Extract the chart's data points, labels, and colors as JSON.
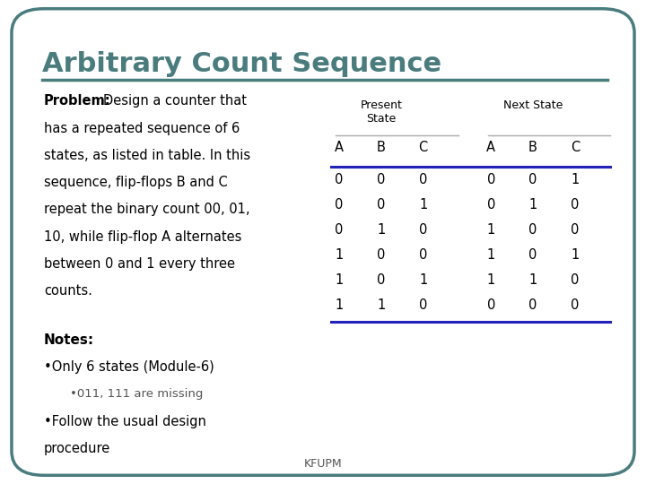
{
  "title": "Arbitrary Count Sequence",
  "title_color": "#4a7c7e",
  "background_color": "#ffffff",
  "border_color": "#4a7c7e",
  "present_state_label": "Present\nState",
  "next_state_label": "Next State",
  "col_headers": [
    "A",
    "B",
    "C",
    "A",
    "B",
    "C"
  ],
  "table_data": [
    [
      0,
      0,
      0,
      0,
      0,
      1
    ],
    [
      0,
      0,
      1,
      0,
      1,
      0
    ],
    [
      0,
      1,
      0,
      1,
      0,
      0
    ],
    [
      1,
      0,
      0,
      1,
      0,
      1
    ],
    [
      1,
      0,
      1,
      1,
      1,
      0
    ],
    [
      1,
      1,
      0,
      0,
      0,
      0
    ]
  ],
  "footer": "KFUPM",
  "title_line_color": "#4a7c7e",
  "table_line_color": "#2222bb",
  "separator_line_color": "#aaaaaa",
  "problem_lines": [
    "Design a counter that",
    "has a repeated sequence of 6",
    "states, as listed in table. In this",
    "sequence, flip-flops B and C",
    "repeat the binary count 00, 01,",
    "10, while flip-flop A alternates",
    "between 0 and 1 every three",
    "counts."
  ],
  "notes_line": "Notes:",
  "bullet1": "•Only 6 states (Module-6)",
  "bullet1_sub": "•011, 111 are missing",
  "bullet2a": "•Follow the usual design",
  "bullet2b": "procedure"
}
